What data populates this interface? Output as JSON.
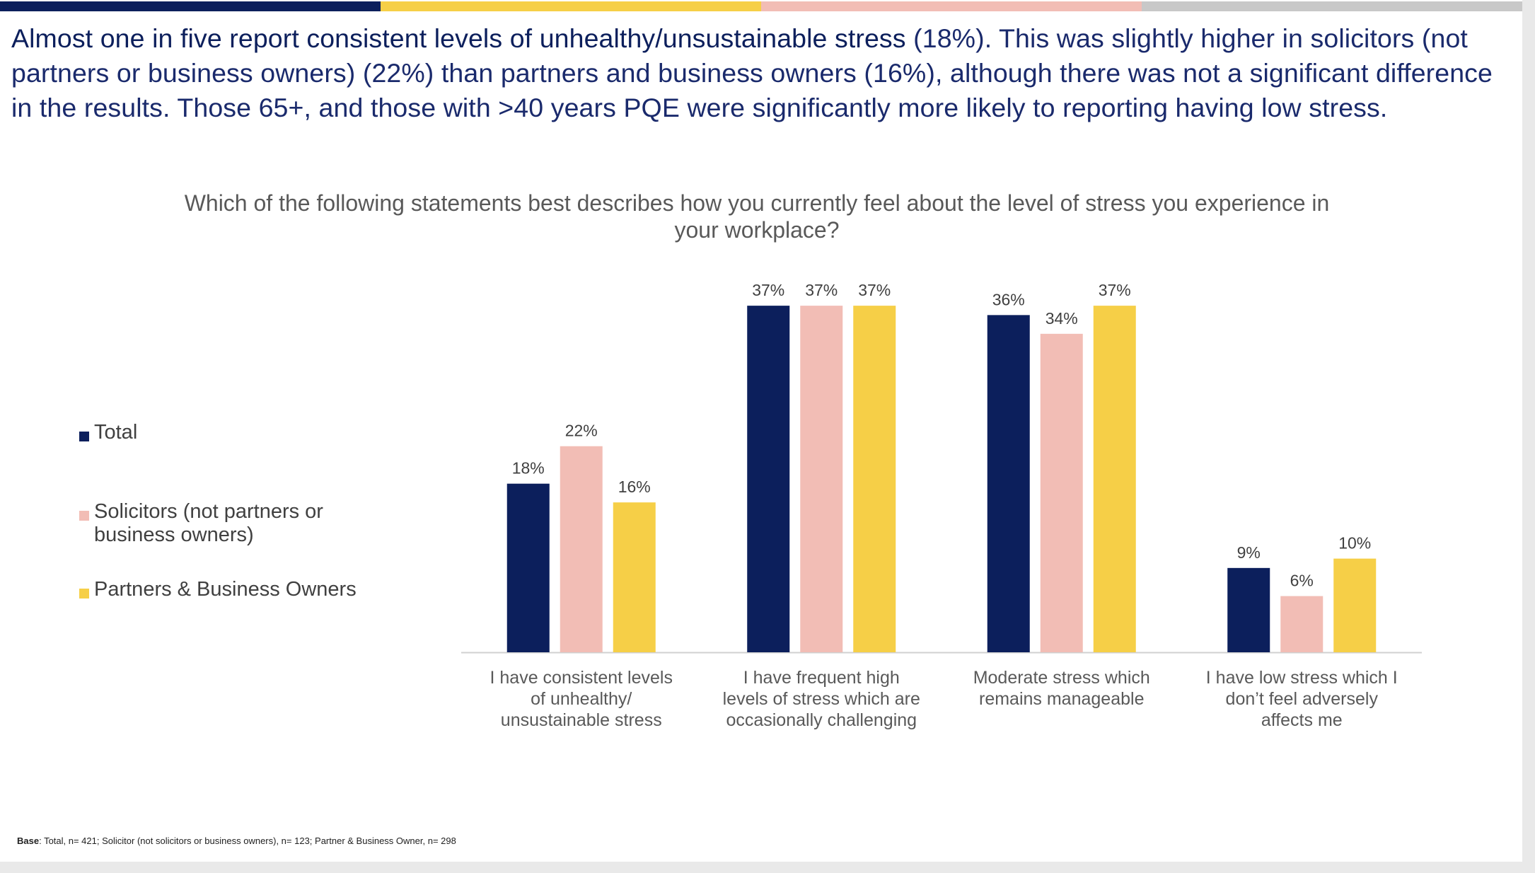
{
  "headline": {
    "lead": "Almost one in five report consistent levels of unhealthy/unsustainable stress",
    "rest": " (18%). This was slightly higher in solicitors (not partners or business owners) (22%) than partners and business owners (16%), although there was not a significant difference in the results. Those 65+, and those with >40 years PQE were significantly more likely to reporting having low stress."
  },
  "topbar_colors": [
    "#0c1f5c",
    "#f6cf47",
    "#f2bdb5",
    "#c8c8c8"
  ],
  "footnote": {
    "label": "Base",
    "text": ": Total, n= 421; Solicitor (not solicitors or business owners), n= 123; Partner & Business Owner, n= 298"
  },
  "chart_data": {
    "type": "bar",
    "title": "Which of the following statements best describes how you currently feel about the level of stress you experience in your workplace?",
    "categories": [
      "I have consistent levels of unhealthy/ unsustainable stress",
      "I have frequent high levels of stress which are occasionally challenging",
      "Moderate stress which remains manageable",
      "I have low stress which I don’t feel adversely affects me"
    ],
    "series": [
      {
        "name": "Total",
        "color": "#0c1f5c",
        "values": [
          18,
          37,
          36,
          9
        ],
        "labels": [
          "18%",
          "37%",
          "36%",
          "9%"
        ]
      },
      {
        "name": "Solicitors (not partners or business owners)",
        "color": "#f2bdb5",
        "values": [
          22,
          37,
          34,
          6
        ],
        "labels": [
          "22%",
          "37%",
          "34%",
          "6%"
        ]
      },
      {
        "name": "Partners & Business Owners",
        "color": "#f6cf47",
        "values": [
          16,
          37,
          37,
          10
        ],
        "labels": [
          "16%",
          "37%",
          "37%",
          "10%"
        ]
      }
    ],
    "legend_position": "left",
    "grid": false
  }
}
